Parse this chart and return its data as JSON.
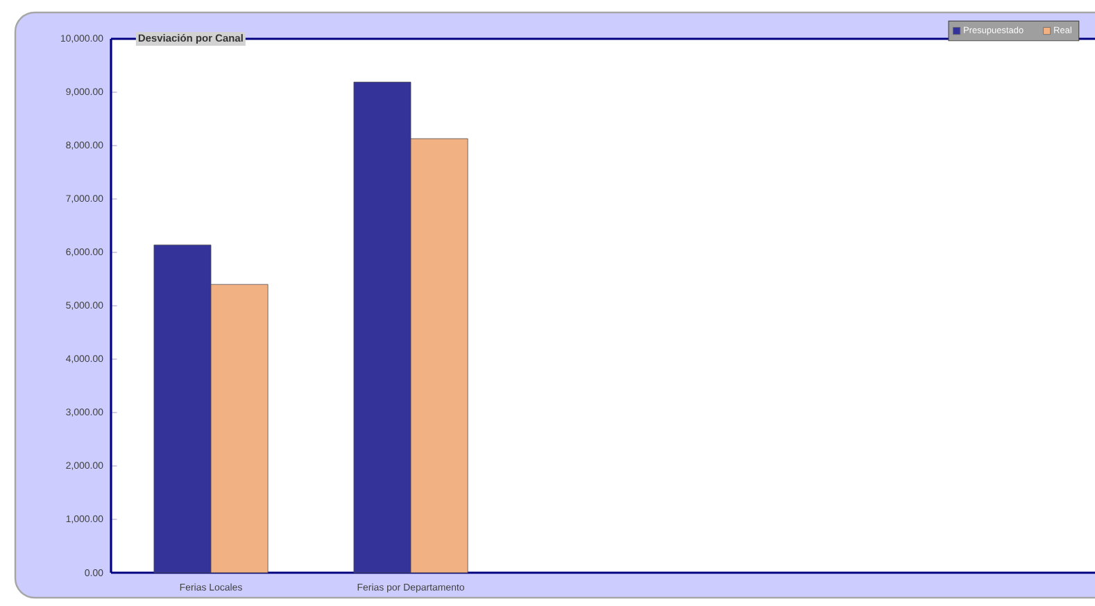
{
  "chart_data": {
    "type": "bar",
    "title": "Desviación por Canal",
    "categories": [
      "Ferias Locales",
      "Ferias por Departamento",
      null,
      null,
      null
    ],
    "series": [
      {
        "name": "Presupuestado",
        "color": "#333399",
        "values": [
          6140,
          9190,
          null,
          null,
          null
        ]
      },
      {
        "name": "Real",
        "color": "#f2b183",
        "values": [
          5400,
          8130,
          null,
          null,
          null
        ]
      }
    ],
    "ylim": [
      0,
      10000
    ],
    "yticks": [
      {
        "value": 0,
        "label": "0.00"
      },
      {
        "value": 1000,
        "label": "1,000.00"
      },
      {
        "value": 2000,
        "label": "2,000.00"
      },
      {
        "value": 3000,
        "label": "3,000.00"
      },
      {
        "value": 4000,
        "label": "4,000.00"
      },
      {
        "value": 5000,
        "label": "5,000.00"
      },
      {
        "value": 6000,
        "label": "6,000.00"
      },
      {
        "value": 7000,
        "label": "7,000.00"
      },
      {
        "value": 8000,
        "label": "8,000.00"
      },
      {
        "value": 9000,
        "label": "9,000.00"
      },
      {
        "value": 10000,
        "label": "10,000.00"
      }
    ],
    "grid": false,
    "legend": "top right"
  }
}
